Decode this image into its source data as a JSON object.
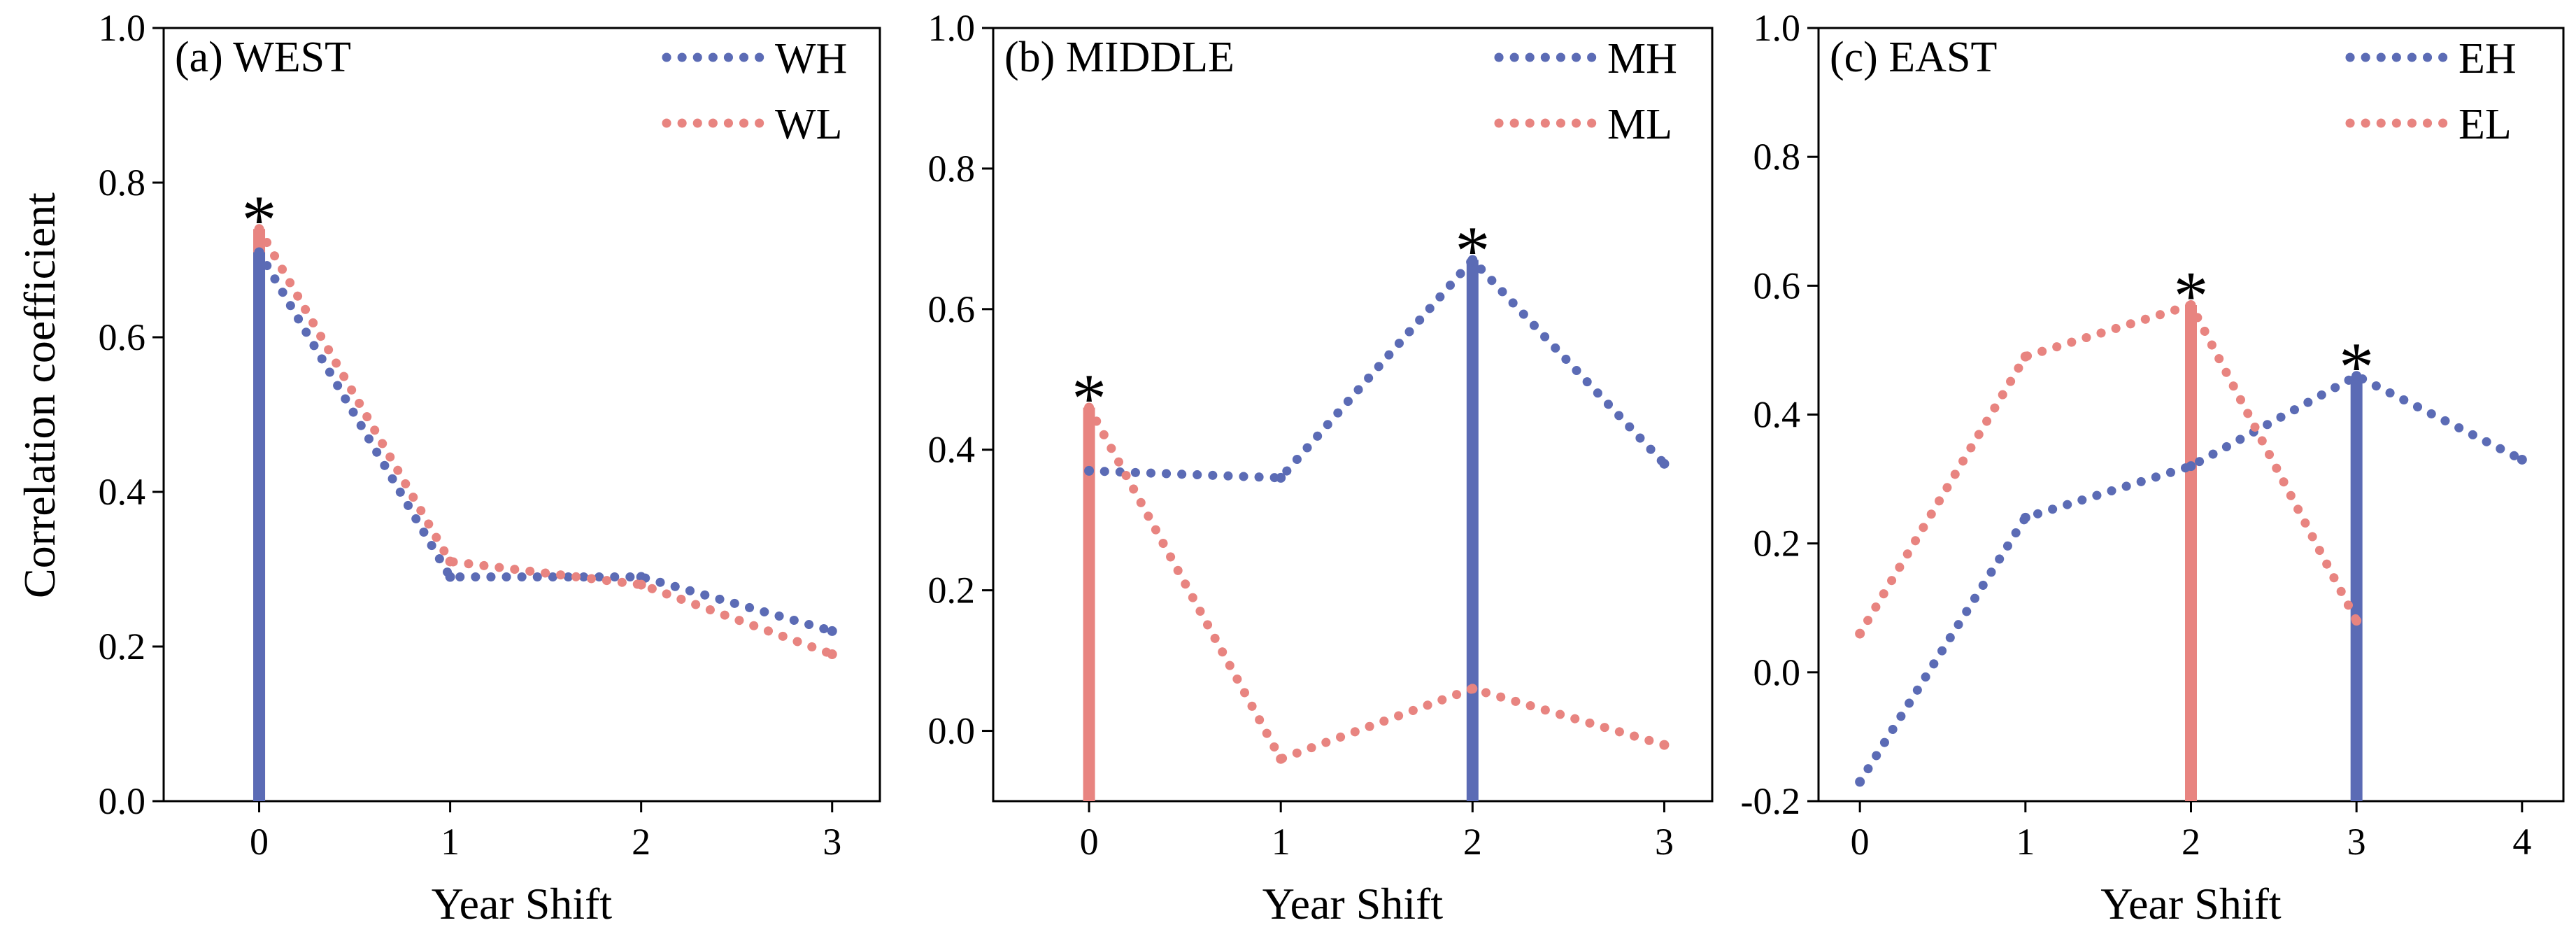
{
  "figure": {
    "ylabel": "Correlation coefficient"
  },
  "colors": {
    "high": "#5b6bb5",
    "low": "#e88480",
    "axis": "#000000"
  },
  "chart_data": [
    {
      "type": "line",
      "title": "(a) WEST",
      "xlabel": "Year Shift",
      "ylabel": "Correlation coefficient",
      "xlim": [
        -0.5,
        3.25
      ],
      "ylim": [
        0.0,
        1.0
      ],
      "x_ticks": [
        0,
        1,
        2,
        3
      ],
      "y_ticks": [
        0.0,
        0.2,
        0.4,
        0.6,
        0.8,
        1.0
      ],
      "y_tick_labels": [
        "0.0",
        "0.2",
        "0.4",
        "0.6",
        "0.8",
        "1.0"
      ],
      "series": [
        {
          "name": "WH",
          "color_key": "high",
          "x": [
            0,
            1,
            2,
            3
          ],
          "values": [
            0.71,
            0.29,
            0.29,
            0.22
          ]
        },
        {
          "name": "WL",
          "color_key": "low",
          "x": [
            0,
            1,
            2,
            3
          ],
          "values": [
            0.74,
            0.31,
            0.28,
            0.19
          ]
        }
      ],
      "significance_bars": [
        {
          "series": "WL",
          "x": 0,
          "value": 0.74,
          "color_key": "low"
        },
        {
          "series": "WH",
          "x": 0,
          "value": 0.71,
          "color_key": "high"
        }
      ],
      "annotations": [
        {
          "text": "*",
          "x": 0,
          "value": 0.74
        }
      ]
    },
    {
      "type": "line",
      "title": "(b) MIDDLE",
      "xlabel": "Year Shift",
      "ylabel": "",
      "xlim": [
        -0.5,
        3.25
      ],
      "ylim": [
        -0.1,
        1.0
      ],
      "x_ticks": [
        0,
        1,
        2,
        3
      ],
      "y_ticks": [
        0.0,
        0.2,
        0.4,
        0.6,
        0.8,
        1.0
      ],
      "y_tick_labels": [
        "0.0",
        "0.2",
        "0.4",
        "0.6",
        "0.8",
        "1.0"
      ],
      "series": [
        {
          "name": "MH",
          "color_key": "high",
          "x": [
            0,
            1,
            2,
            3
          ],
          "values": [
            0.37,
            0.36,
            0.67,
            0.38
          ]
        },
        {
          "name": "ML",
          "color_key": "low",
          "x": [
            0,
            1,
            2,
            3
          ],
          "values": [
            0.46,
            -0.04,
            0.06,
            -0.02
          ]
        }
      ],
      "significance_bars": [
        {
          "series": "ML",
          "x": 0,
          "value": 0.46,
          "color_key": "low"
        },
        {
          "series": "MH",
          "x": 2,
          "value": 0.67,
          "color_key": "high"
        }
      ],
      "annotations": [
        {
          "text": "*",
          "x": 0,
          "value": 0.46
        },
        {
          "text": "*",
          "x": 2,
          "value": 0.67
        }
      ]
    },
    {
      "type": "line",
      "title": "(c) EAST",
      "xlabel": "Year Shift",
      "ylabel": "",
      "xlim": [
        -0.25,
        4.25
      ],
      "ylim": [
        -0.2,
        1.0
      ],
      "x_ticks": [
        0,
        1,
        2,
        3,
        4
      ],
      "y_ticks": [
        -0.2,
        0.0,
        0.2,
        0.4,
        0.6,
        0.8,
        1.0
      ],
      "y_tick_labels": [
        "-0.2",
        "0.0",
        "0.2",
        "0.4",
        "0.6",
        "0.8",
        "1.0"
      ],
      "series": [
        {
          "name": "EH",
          "color_key": "high",
          "x": [
            0,
            1,
            2,
            3,
            4
          ],
          "values": [
            -0.17,
            0.24,
            0.32,
            0.46,
            0.33
          ]
        },
        {
          "name": "EL",
          "color_key": "low",
          "x": [
            0,
            1,
            2,
            3
          ],
          "values": [
            0.06,
            0.49,
            0.57,
            0.08
          ]
        }
      ],
      "significance_bars": [
        {
          "series": "EL",
          "x": 2,
          "value": 0.57,
          "color_key": "low"
        },
        {
          "series": "EH",
          "x": 3,
          "value": 0.46,
          "color_key": "high"
        }
      ],
      "annotations": [
        {
          "text": "*",
          "x": 2,
          "value": 0.57
        },
        {
          "text": "*",
          "x": 3,
          "value": 0.46
        }
      ]
    }
  ]
}
